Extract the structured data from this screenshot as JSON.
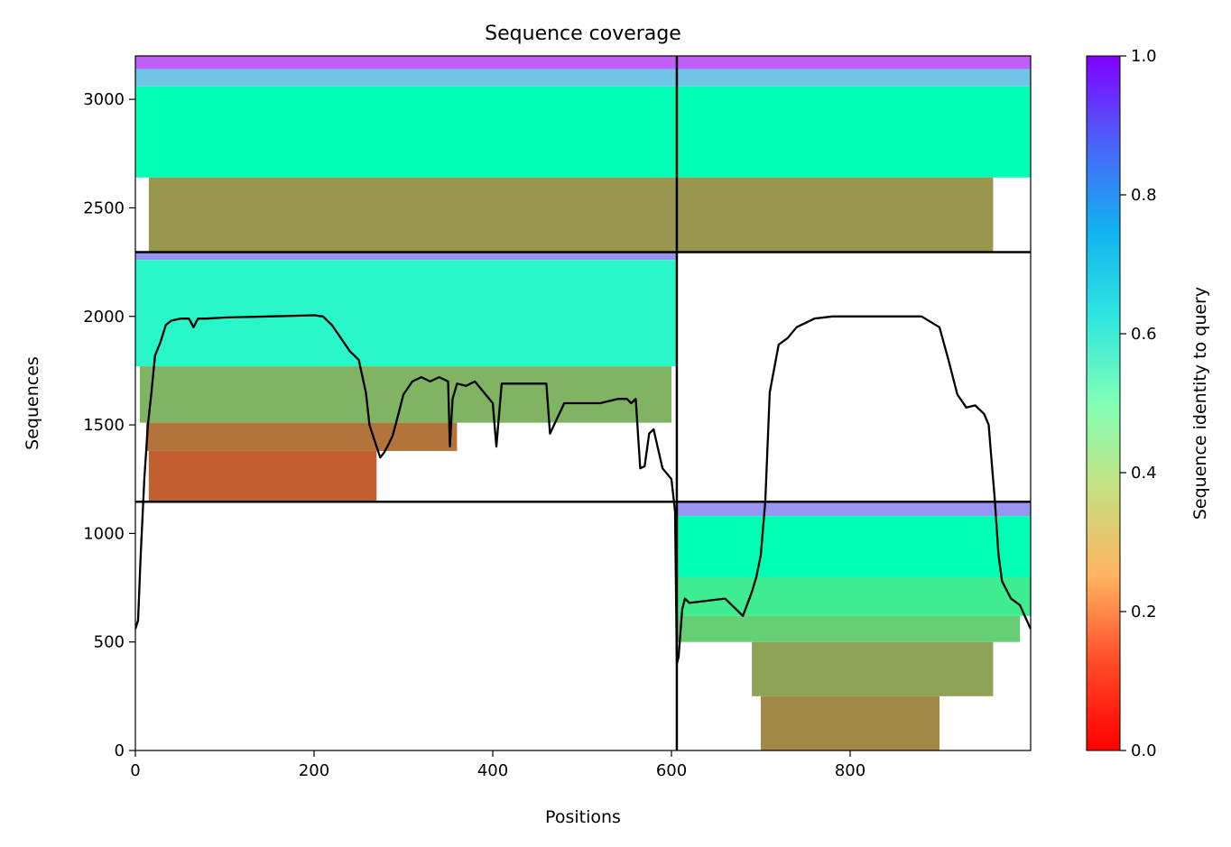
{
  "chart_data": {
    "type": "heatmap",
    "title": "Sequence coverage",
    "xlabel": "Positions",
    "ylabel": "Sequences",
    "xlim": [
      0,
      1002
    ],
    "ylim": [
      0,
      3200
    ],
    "x_ticks": [
      0,
      200,
      400,
      600,
      800
    ],
    "y_ticks": [
      0,
      500,
      1000,
      1500,
      2000,
      2500,
      3000
    ],
    "colorbar": {
      "label": "Sequence identity to query",
      "range": [
        0.0,
        1.0
      ],
      "ticks": [
        0.0,
        0.2,
        0.4,
        0.6,
        0.8,
        1.0
      ],
      "tick_labels": [
        "0.0",
        "0.2",
        "0.4",
        "0.6",
        "0.8",
        "1.0"
      ],
      "colormap": "rainbow_r"
    },
    "chain_boundaries": {
      "vertical_position": 606,
      "horizontal_sequences": [
        1146,
        2296
      ]
    },
    "blocks": [
      {
        "name": "chain-1-only",
        "x_range": [
          0,
          606
        ],
        "seq_range": [
          1146,
          2296
        ],
        "identity_bands": [
          {
            "seq": [
              2260,
              2296
            ],
            "identity": 0.8,
            "x": [
              0,
              606
            ]
          },
          {
            "seq": [
              1770,
              2260
            ],
            "identity": 0.58,
            "x": [
              0,
              606
            ]
          },
          {
            "seq": [
              1510,
              1770
            ],
            "identity": 0.25,
            "x": [
              5,
              600
            ]
          },
          {
            "seq": [
              1380,
              1510
            ],
            "identity": 0.15,
            "x": [
              12,
              360
            ]
          },
          {
            "seq": [
              1146,
              1380
            ],
            "identity": 0.12,
            "x": [
              15,
              270
            ]
          }
        ]
      },
      {
        "name": "chain-2-only",
        "x_range": [
          606,
          1002
        ],
        "seq_range": [
          0,
          1146
        ],
        "identity_bands": [
          {
            "seq": [
              1080,
              1146
            ],
            "identity": 0.8,
            "x": [
              606,
              1002
            ]
          },
          {
            "seq": [
              800,
              1080
            ],
            "identity": 0.5,
            "x": [
              606,
              1002
            ]
          },
          {
            "seq": [
              620,
              800
            ],
            "identity": 0.38,
            "x": [
              606,
              1002
            ]
          },
          {
            "seq": [
              500,
              620
            ],
            "identity": 0.3,
            "x": [
              606,
              990
            ]
          },
          {
            "seq": [
              250,
              500
            ],
            "identity": 0.22,
            "x": [
              690,
              960
            ]
          },
          {
            "seq": [
              0,
              250
            ],
            "identity": 0.18,
            "x": [
              700,
              900
            ]
          }
        ]
      },
      {
        "name": "paired",
        "x_range": [
          0,
          1002
        ],
        "seq_range": [
          2296,
          3200
        ],
        "identity_bands": [
          {
            "seq": [
              3140,
              3200
            ],
            "identity": 0.88,
            "x": [
              0,
              1002
            ]
          },
          {
            "seq": [
              3060,
              3140
            ],
            "identity": 0.72,
            "x": [
              0,
              1002
            ]
          },
          {
            "seq": [
              2640,
              3060
            ],
            "identity": 0.5,
            "x": [
              0,
              1002
            ]
          },
          {
            "seq": [
              2296,
              2640
            ],
            "identity": 0.2,
            "x": [
              15,
              960
            ]
          }
        ]
      }
    ],
    "coverage_line": {
      "name": "coverage",
      "color": "#000000",
      "x": [
        0,
        3,
        6,
        10,
        14,
        18,
        22,
        28,
        34,
        40,
        50,
        60,
        65,
        70,
        80,
        100,
        150,
        200,
        210,
        220,
        230,
        240,
        250,
        258,
        262,
        266,
        270,
        274,
        278,
        282,
        288,
        295,
        300,
        310,
        320,
        330,
        340,
        350,
        352,
        355,
        360,
        370,
        380,
        400,
        404,
        410,
        440,
        460,
        464,
        480,
        500,
        520,
        540,
        550,
        555,
        560,
        565,
        570,
        575,
        580,
        590,
        600,
        604,
        606,
        608,
        612,
        615,
        620,
        640,
        660,
        680,
        690,
        695,
        700,
        705,
        710,
        720,
        730,
        740,
        760,
        780,
        800,
        820,
        840,
        860,
        880,
        900,
        910,
        920,
        930,
        940,
        950,
        955,
        958,
        962,
        966,
        970,
        980,
        990,
        1002
      ],
      "y": [
        560,
        600,
        900,
        1250,
        1500,
        1650,
        1820,
        1880,
        1960,
        1980,
        1990,
        1990,
        1950,
        1990,
        1990,
        1995,
        2000,
        2005,
        2000,
        1960,
        1900,
        1840,
        1800,
        1650,
        1500,
        1450,
        1400,
        1350,
        1370,
        1400,
        1450,
        1560,
        1640,
        1700,
        1720,
        1700,
        1720,
        1700,
        1400,
        1620,
        1690,
        1680,
        1700,
        1600,
        1400,
        1690,
        1690,
        1690,
        1460,
        1600,
        1600,
        1600,
        1620,
        1620,
        1600,
        1620,
        1300,
        1310,
        1460,
        1480,
        1300,
        1250,
        1100,
        400,
        430,
        650,
        700,
        680,
        690,
        700,
        620,
        730,
        800,
        900,
        1150,
        1650,
        1870,
        1900,
        1950,
        1990,
        2000,
        2000,
        2000,
        2000,
        2000,
        2000,
        1950,
        1800,
        1640,
        1580,
        1590,
        1550,
        1500,
        1350,
        1150,
        900,
        780,
        700,
        670,
        560
      ]
    }
  }
}
